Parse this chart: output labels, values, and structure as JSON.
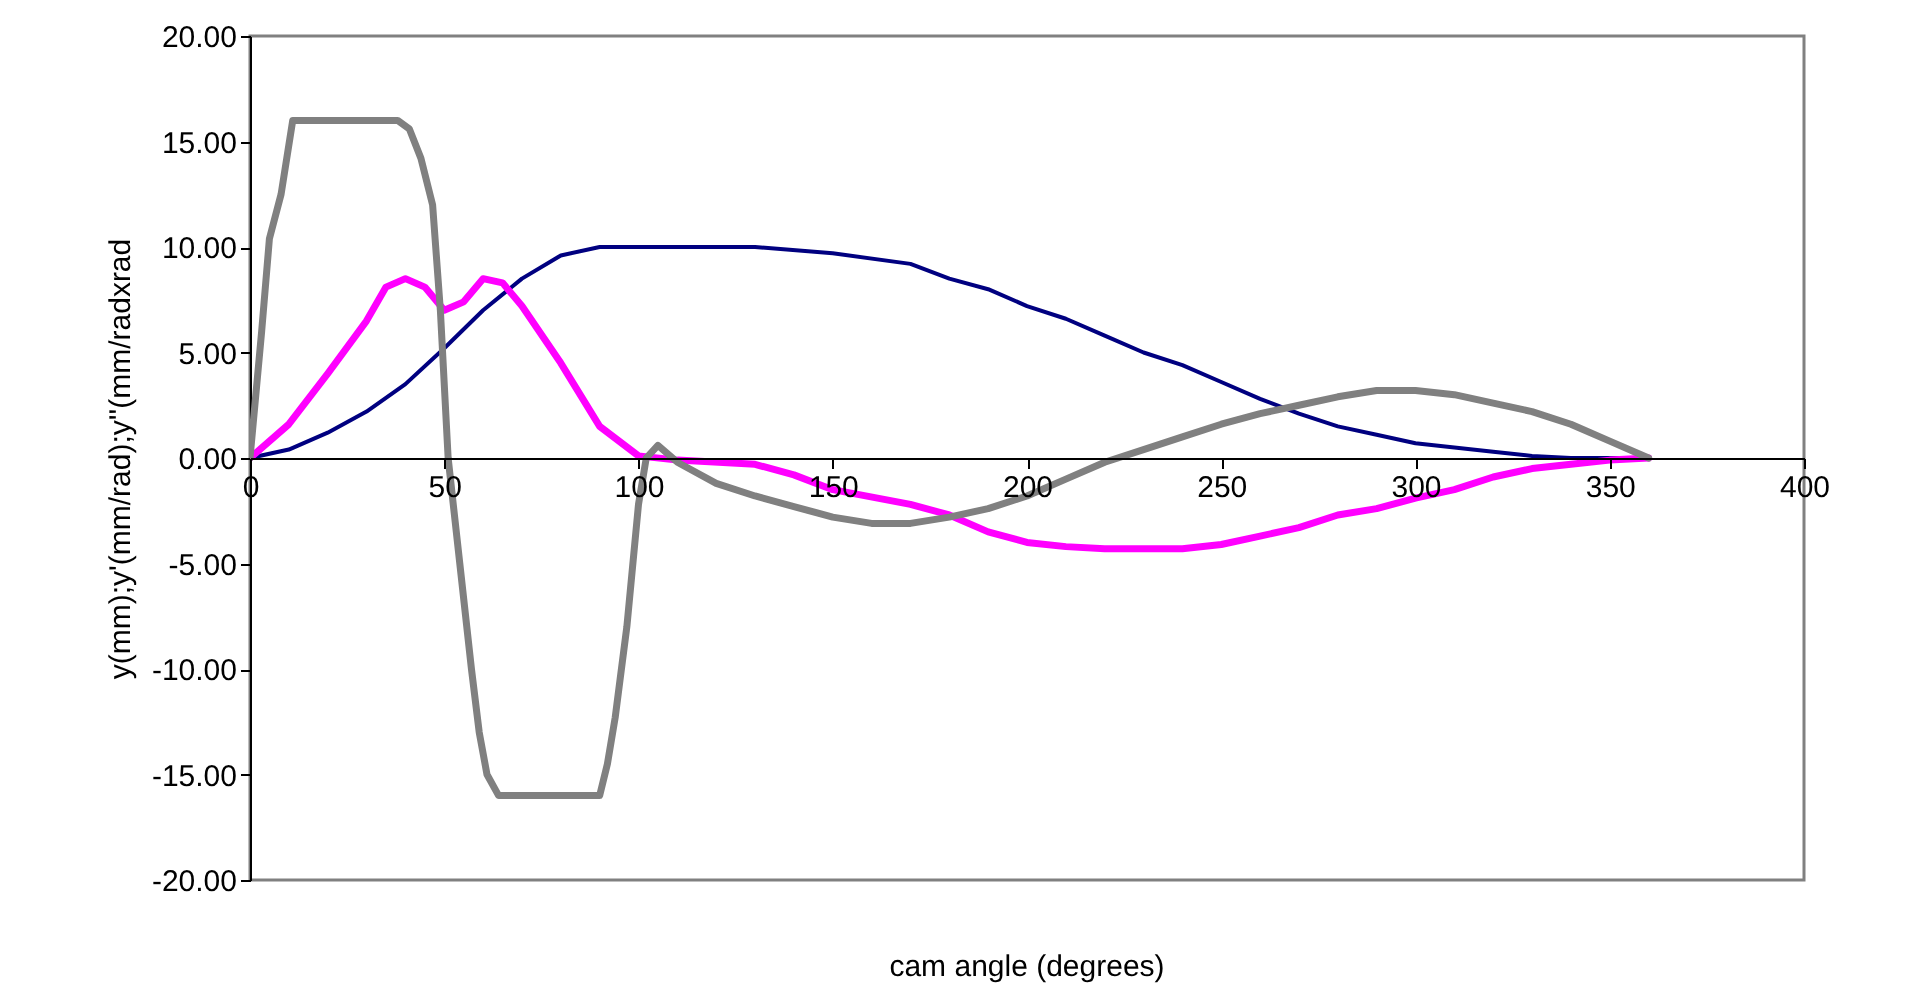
{
  "chart_data": {
    "type": "line",
    "xlabel": "cam angle (degrees)",
    "ylabel": "y(mm);y'(mm/rad);y''(mm/radxrad",
    "xlim": [
      0,
      400
    ],
    "xticks": [
      0,
      50,
      100,
      150,
      200,
      250,
      300,
      350,
      400
    ],
    "ylim": [
      -20,
      20
    ],
    "yticks": [
      {
        "value": -20,
        "label": "-20.00"
      },
      {
        "value": -15,
        "label": "-15.00"
      },
      {
        "value": -10,
        "label": "-10.00"
      },
      {
        "value": -5,
        "label": "-5.00"
      },
      {
        "value": 0,
        "label": "0.00"
      },
      {
        "value": 5,
        "label": "5.00"
      },
      {
        "value": 10,
        "label": "10.00"
      },
      {
        "value": 15,
        "label": "15.00"
      },
      {
        "value": 20,
        "label": "20.00"
      }
    ],
    "grid": false,
    "marker": "none",
    "line_style": "solid",
    "series": [
      {
        "color": "#000080",
        "x": [
          0,
          10,
          20,
          30,
          40,
          50,
          60,
          70,
          80,
          90,
          100,
          130,
          150,
          170,
          180,
          190,
          200,
          210,
          220,
          230,
          240,
          250,
          260,
          270,
          280,
          290,
          300,
          310,
          320,
          330,
          340,
          360
        ],
        "values": [
          0,
          0.4,
          1.2,
          2.2,
          3.5,
          5.2,
          7,
          8.5,
          9.6,
          10,
          10,
          10,
          9.7,
          9.2,
          8.5,
          8,
          7.2,
          6.6,
          5.8,
          5,
          4.4,
          3.6,
          2.8,
          2.1,
          1.5,
          1.1,
          0.7,
          0.5,
          0.3,
          0.1,
          0,
          0
        ]
      },
      {
        "color": "#ff00ff",
        "x": [
          0,
          10,
          20,
          30,
          35,
          40,
          45,
          50,
          55,
          60,
          65,
          70,
          80,
          90,
          100,
          110,
          130,
          140,
          150,
          170,
          180,
          190,
          200,
          210,
          220,
          240,
          250,
          260,
          270,
          280,
          290,
          300,
          310,
          320,
          330,
          340,
          350,
          360
        ],
        "values": [
          0,
          1.6,
          4,
          6.5,
          8.1,
          8.5,
          8.1,
          7,
          7.4,
          8.5,
          8.3,
          7.2,
          4.5,
          1.5,
          0.1,
          -0.1,
          -0.3,
          -0.8,
          -1.5,
          -2.2,
          -2.7,
          -3.5,
          -4,
          -4.2,
          -4.3,
          -4.3,
          -4.1,
          -3.7,
          -3.3,
          -2.7,
          -2.4,
          -1.9,
          -1.5,
          -0.9,
          -0.5,
          -0.3,
          -0.1,
          0
        ]
      },
      {
        "color": "#808080",
        "x": [
          0,
          3,
          5,
          8,
          11,
          15,
          38,
          41,
          44,
          47,
          49,
          51,
          54,
          57,
          59,
          61,
          64,
          75,
          90,
          92,
          94,
          97,
          100,
          102,
          105,
          110,
          120,
          130,
          140,
          150,
          160,
          170,
          180,
          190,
          200,
          210,
          220,
          230,
          240,
          250,
          260,
          270,
          280,
          290,
          300,
          310,
          320,
          330,
          340,
          350,
          360
        ],
        "values": [
          0,
          6,
          10.4,
          12.5,
          16,
          16,
          16,
          15.6,
          14.2,
          12,
          7,
          0,
          -5,
          -10,
          -13,
          -15,
          -16,
          -16,
          -16,
          -14.5,
          -12.3,
          -8,
          -2.2,
          0,
          0.6,
          -0.2,
          -1.2,
          -1.8,
          -2.3,
          -2.8,
          -3.1,
          -3.1,
          -2.8,
          -2.4,
          -1.8,
          -1,
          -0.2,
          0.4,
          1,
          1.6,
          2.1,
          2.5,
          2.9,
          3.2,
          3.2,
          3,
          2.6,
          2.2,
          1.6,
          0.8,
          0
        ]
      }
    ]
  }
}
